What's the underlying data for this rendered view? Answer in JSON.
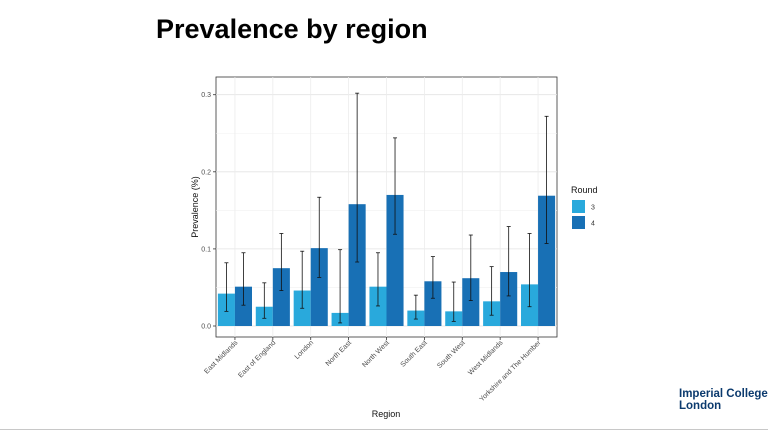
{
  "slide": {
    "title": "Prevalence by region"
  },
  "logo": {
    "line1": "Imperial College",
    "line2": "London",
    "color": "#0b3a6e"
  },
  "chart_data": {
    "type": "bar",
    "title": "",
    "xlabel": "Region",
    "ylabel": "Prevalence (%)",
    "ylim": [
      0,
      0.31
    ],
    "yticks": [
      "0.0",
      "0.1",
      "0.2",
      "0.3"
    ],
    "grid": true,
    "legend": {
      "title": "Round",
      "placement": "right"
    },
    "categories": [
      "East Midlands",
      "East of England",
      "London",
      "North East",
      "North West",
      "South East",
      "South West",
      "West Midlands",
      "Yorkshire and The Humber"
    ],
    "series": [
      {
        "name": "3",
        "color": "#29a9dc",
        "values": [
          0.042,
          0.025,
          0.046,
          0.017,
          0.051,
          0.02,
          0.019,
          0.032,
          0.054
        ],
        "error_low": [
          0.019,
          0.01,
          0.023,
          0.004,
          0.026,
          0.009,
          0.006,
          0.014,
          0.025
        ],
        "error_high": [
          0.082,
          0.056,
          0.097,
          0.099,
          0.095,
          0.04,
          0.057,
          0.077,
          0.12
        ]
      },
      {
        "name": "4",
        "color": "#1870b5",
        "values": [
          0.051,
          0.075,
          0.101,
          0.158,
          0.17,
          0.058,
          0.062,
          0.07,
          0.169
        ],
        "error_low": [
          0.027,
          0.046,
          0.063,
          0.083,
          0.119,
          0.036,
          0.033,
          0.039,
          0.107
        ],
        "error_high": [
          0.095,
          0.12,
          0.167,
          0.302,
          0.244,
          0.09,
          0.118,
          0.129,
          0.272
        ]
      }
    ]
  }
}
